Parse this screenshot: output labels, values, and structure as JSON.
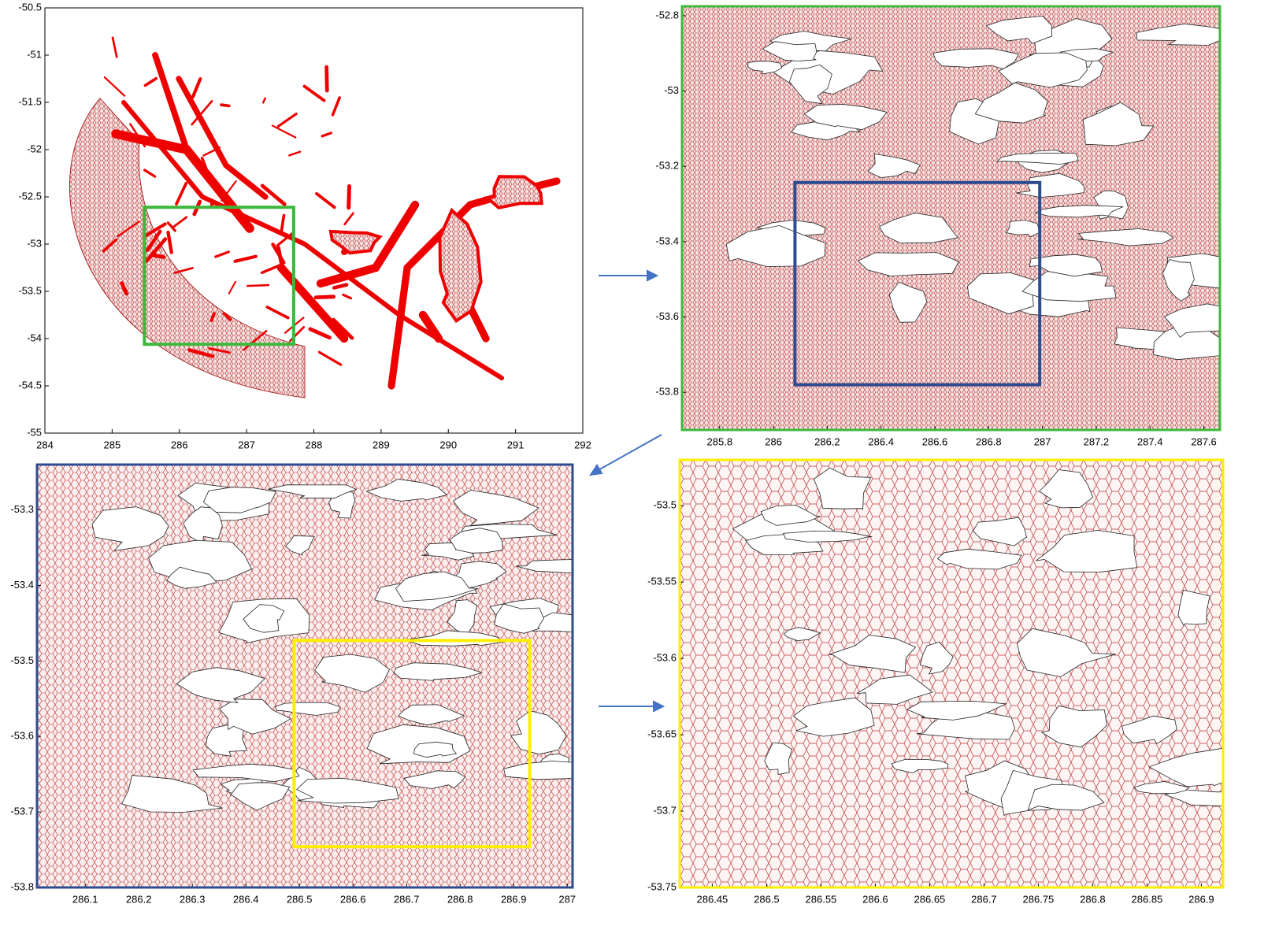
{
  "chart_data": [
    {
      "type": "map",
      "xlim": [
        284,
        292
      ],
      "ylim": [
        -55,
        -50.5
      ],
      "xticks": [
        284,
        285,
        286,
        287,
        288,
        289,
        290,
        291,
        292
      ],
      "yticks": [
        -50.5,
        -51,
        -51.5,
        -52,
        -52.5,
        -53,
        -53.5,
        -54,
        -54.5,
        -55
      ],
      "frame_color": "#000000",
      "highlight": {
        "color": "#3cb93c",
        "xlim": [
          285.48,
          287.7
        ],
        "ylim": [
          -54.06,
          -52.61
        ]
      }
    },
    {
      "type": "map",
      "xlim": [
        285.66,
        287.66
      ],
      "ylim": [
        -53.9,
        -52.775
      ],
      "xticks": [
        285.8,
        286,
        286.2,
        286.4,
        286.6,
        286.8,
        287,
        287.2,
        287.4,
        287.6
      ],
      "yticks": [
        -52.8,
        -53,
        -53.2,
        -53.4,
        -53.6,
        -53.8
      ],
      "frame_color": "#3cb93c",
      "highlight": {
        "color": "#2e4b8f",
        "xlim": [
          286.08,
          286.99
        ],
        "ylim": [
          -53.78,
          -53.243
        ]
      }
    },
    {
      "type": "map",
      "xlim": [
        286.01,
        287.01
      ],
      "ylim": [
        -53.8,
        -53.24
      ],
      "xticks": [
        286.1,
        286.2,
        286.3,
        286.4,
        286.5,
        286.6,
        286.7,
        286.8,
        286.9,
        287
      ],
      "yticks": [
        -53.3,
        -53.4,
        -53.5,
        -53.6,
        -53.7,
        -53.8
      ],
      "frame_color": "#2e4b8f",
      "highlight": {
        "color": "#ffee00",
        "xlim": [
          286.49,
          286.93
        ],
        "ylim": [
          -53.746,
          -53.473
        ]
      }
    },
    {
      "type": "map",
      "xlim": [
        286.42,
        286.92
      ],
      "ylim": [
        -53.75,
        -53.47
      ],
      "xticks": [
        286.45,
        286.5,
        286.55,
        286.6,
        286.65,
        286.7,
        286.75,
        286.8,
        286.85,
        286.9
      ],
      "yticks": [
        -53.5,
        -53.55,
        -53.6,
        -53.65,
        -53.7,
        -53.75
      ],
      "frame_color": "#ffee00"
    }
  ]
}
